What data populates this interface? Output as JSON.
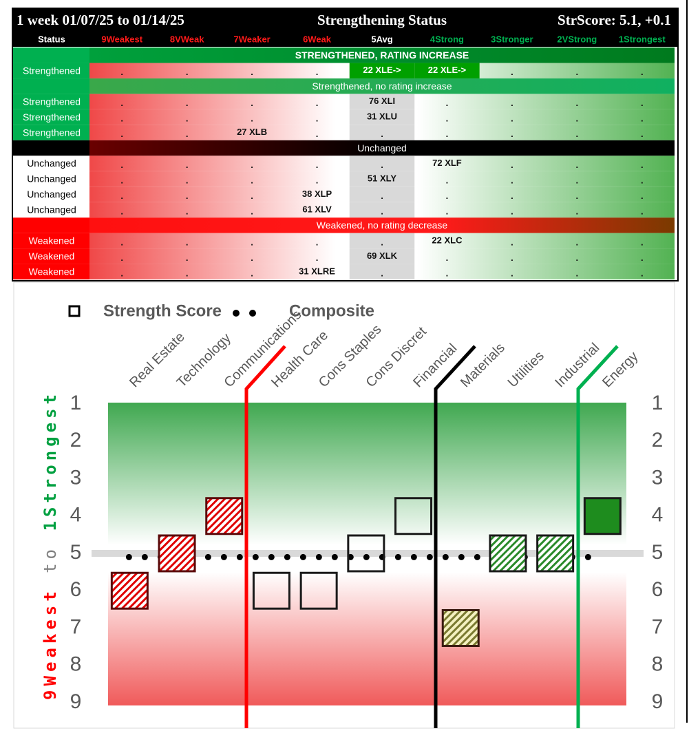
{
  "table": {
    "title_left": "1 week 01/07/25 to 01/14/25",
    "title_center": "Strengthening Status",
    "title_right": "StrScore: 5.1, +0.1",
    "headers": [
      "Status",
      "9Weakest",
      "8VWeak",
      "7Weaker",
      "6Weak",
      "5Avg",
      "4Strong",
      "3Stronger",
      "2VStrong",
      "1Strongest"
    ],
    "sections": [
      {
        "title": "STRENGTHENED, RATING INCREASE",
        "rows": [
          {
            "status": "Strengthened",
            "cells": [
              ".",
              ".",
              ".",
              ".",
              "22 XLE->",
              "22 XLE->",
              ".",
              ".",
              "."
            ]
          }
        ]
      },
      {
        "title": "Strengthened, no rating increase",
        "rows": [
          {
            "status": "Strengthened",
            "cells": [
              ".",
              ".",
              ".",
              ".",
              "76 XLI",
              ".",
              ".",
              ".",
              "."
            ]
          },
          {
            "status": "Strengthened",
            "cells": [
              ".",
              ".",
              ".",
              ".",
              "31 XLU",
              ".",
              ".",
              ".",
              "."
            ]
          },
          {
            "status": "Strengthened",
            "cells": [
              ".",
              ".",
              "27 XLB",
              ".",
              ".",
              ".",
              ".",
              ".",
              "."
            ]
          }
        ]
      },
      {
        "title": "Unchanged",
        "rows": [
          {
            "status": "Unchanged",
            "cells": [
              ".",
              ".",
              ".",
              ".",
              ".",
              "72 XLF",
              ".",
              ".",
              "."
            ]
          },
          {
            "status": "Unchanged",
            "cells": [
              ".",
              ".",
              ".",
              ".",
              "51 XLY",
              ".",
              ".",
              ".",
              "."
            ]
          },
          {
            "status": "Unchanged",
            "cells": [
              ".",
              ".",
              ".",
              "38 XLP",
              ".",
              ".",
              ".",
              ".",
              "."
            ]
          },
          {
            "status": "Unchanged",
            "cells": [
              ".",
              ".",
              ".",
              "61 XLV",
              ".",
              ".",
              ".",
              ".",
              "."
            ]
          }
        ]
      },
      {
        "title": "Weakened, no rating decrease",
        "rows": [
          {
            "status": "Weakened",
            "cells": [
              ".",
              ".",
              ".",
              ".",
              ".",
              "22 XLC",
              ".",
              ".",
              "."
            ]
          },
          {
            "status": "Weakened",
            "cells": [
              ".",
              ".",
              ".",
              ".",
              "69 XLK",
              ".",
              ".",
              ".",
              "."
            ]
          },
          {
            "status": "Weakened",
            "cells": [
              ".",
              ".",
              ".",
              "31 XLRE",
              ".",
              ".",
              ".",
              ".",
              "."
            ]
          }
        ]
      }
    ]
  },
  "chart_data": {
    "type": "box-marker",
    "categories": [
      "Real Estate",
      "Technology",
      "Communications",
      "Health Care",
      "Cons Staples",
      "Cons Discret",
      "Financial",
      "Materials",
      "Utilities",
      "Industrial",
      "Energy"
    ],
    "series": [
      {
        "name": "Strength Score",
        "values": [
          6,
          5,
          4,
          6,
          6,
          5,
          4,
          7,
          5,
          5,
          4
        ],
        "styles": [
          "red-hatch",
          "red-hatch",
          "red-hatch",
          "none",
          "none",
          "none",
          "none",
          "olive-hatch",
          "green-hatch",
          "green-hatch",
          "green"
        ]
      }
    ],
    "composite": {
      "name": "Composite",
      "value": 5.1
    },
    "ref_line": 5,
    "ylabel": [
      {
        "text": "9Weakest",
        "color": "#ff0000"
      },
      {
        "text": "to",
        "color": "#7f7f7f"
      },
      {
        "text": "1Strongest",
        "color": "#00a040"
      }
    ],
    "ylim": [
      1,
      9
    ],
    "yticks": [
      1,
      2,
      3,
      4,
      5,
      6,
      7,
      8,
      9
    ],
    "inverted": true
  }
}
